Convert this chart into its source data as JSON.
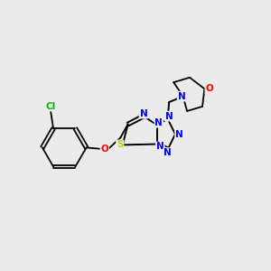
{
  "background_color": "#ebebeb",
  "bond_color": "#000000",
  "atom_colors": {
    "N": "#0000ff",
    "S": "#cccc00",
    "O": "#ff0000",
    "Cl": "#00bb00"
  },
  "figsize": [
    3.0,
    3.0
  ],
  "dpi": 100
}
